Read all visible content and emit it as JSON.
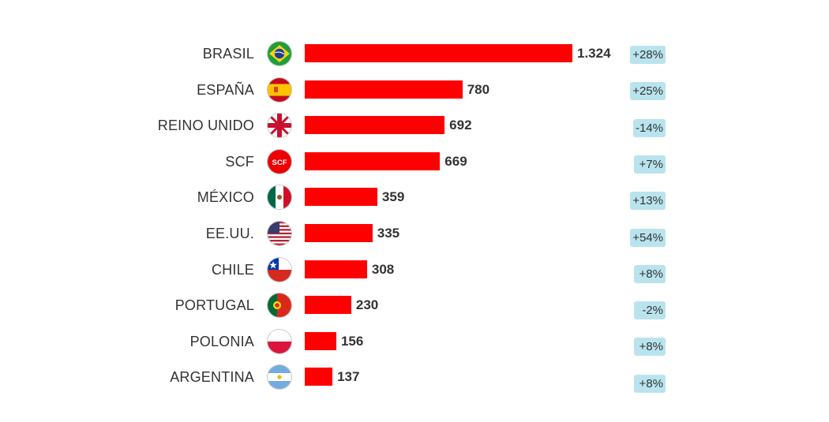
{
  "chart_data": {
    "type": "bar",
    "orientation": "horizontal",
    "bar_color": "#ff0000",
    "change_badge_color": "#b9e4ee",
    "xlim": [
      0,
      1324
    ],
    "rows": [
      {
        "label": "BRASIL",
        "value": 1324,
        "value_label": "1.324",
        "change": "+28%",
        "flag_icon": "brazil-flag-icon"
      },
      {
        "label": "ESPAÑA",
        "value": 780,
        "value_label": "780",
        "change": "+25%",
        "flag_icon": "spain-flag-icon"
      },
      {
        "label": "REINO UNIDO",
        "value": 692,
        "value_label": "692",
        "change": "-14%",
        "flag_icon": "uk-flag-icon"
      },
      {
        "label": "SCF",
        "value": 669,
        "value_label": "669",
        "change": "+7%",
        "flag_icon": "scf-logo-icon",
        "flag_text": "SCF"
      },
      {
        "label": "MÉXICO",
        "value": 359,
        "value_label": "359",
        "change": "+13%",
        "flag_icon": "mexico-flag-icon"
      },
      {
        "label": "EE.UU.",
        "value": 335,
        "value_label": "335",
        "change": "+54%",
        "flag_icon": "usa-flag-icon"
      },
      {
        "label": "CHILE",
        "value": 308,
        "value_label": "308",
        "change": "+8%",
        "flag_icon": "chile-flag-icon"
      },
      {
        "label": "PORTUGAL",
        "value": 230,
        "value_label": "230",
        "change": "-2%",
        "flag_icon": "portugal-flag-icon"
      },
      {
        "label": "POLONIA",
        "value": 156,
        "value_label": "156",
        "change": "+8%",
        "flag_icon": "poland-flag-icon"
      },
      {
        "label": "ARGENTINA",
        "value": 137,
        "value_label": "137",
        "change": "+8%",
        "flag_icon": "argentina-flag-icon"
      }
    ]
  }
}
